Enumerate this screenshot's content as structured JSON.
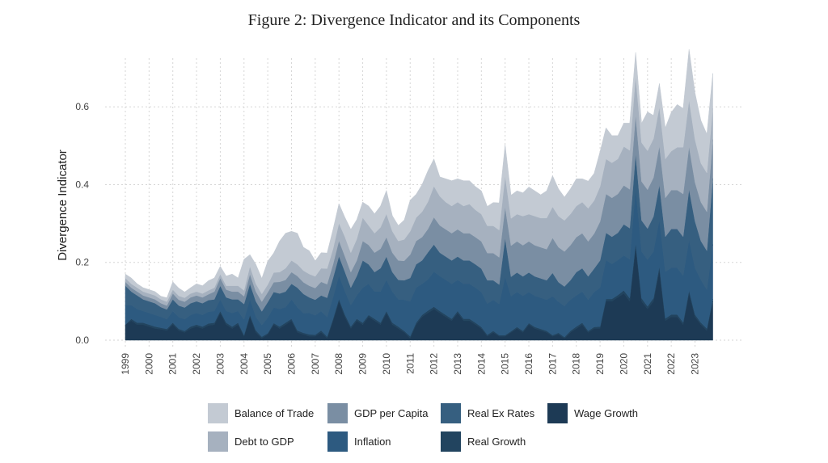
{
  "chart_data": {
    "type": "area",
    "title": "Figure 2: Divergence Indicator and its Components",
    "xlabel": "",
    "ylabel": "Divergence Indicator",
    "xlim": [
      1999,
      2023.8
    ],
    "ylim": [
      0,
      0.75
    ],
    "yticks": [
      0.0,
      0.2,
      0.4,
      0.6
    ],
    "ytick_labels": [
      "0.0",
      "0.2",
      "0.4",
      "0.6"
    ],
    "xticks": [
      "1999",
      "2000",
      "2001",
      "2002",
      "2003",
      "2004",
      "2005",
      "2006",
      "2007",
      "2008",
      "2009",
      "2010",
      "2011",
      "2012",
      "2013",
      "2014",
      "2015",
      "2016",
      "2017",
      "2018",
      "2019",
      "2020",
      "2021",
      "2022",
      "2023"
    ],
    "grid": true,
    "stacked": true,
    "legend_position": "bottom",
    "x": [
      1999.0,
      1999.25,
      1999.5,
      1999.75,
      2000.0,
      2000.25,
      2000.5,
      2000.75,
      2001.0,
      2001.25,
      2001.5,
      2001.75,
      2002.0,
      2002.25,
      2002.5,
      2002.75,
      2003.0,
      2003.25,
      2003.5,
      2003.75,
      2004.0,
      2004.25,
      2004.5,
      2004.75,
      2005.0,
      2005.25,
      2005.5,
      2005.75,
      2006.0,
      2006.25,
      2006.5,
      2006.75,
      2007.0,
      2007.25,
      2007.5,
      2007.75,
      2008.0,
      2008.25,
      2008.5,
      2008.75,
      2009.0,
      2009.25,
      2009.5,
      2009.75,
      2010.0,
      2010.25,
      2010.5,
      2010.75,
      2011.0,
      2011.25,
      2011.5,
      2011.75,
      2012.0,
      2012.25,
      2012.5,
      2012.75,
      2013.0,
      2013.25,
      2013.5,
      2013.75,
      2014.0,
      2014.25,
      2014.5,
      2014.75,
      2015.0,
      2015.25,
      2015.5,
      2015.75,
      2016.0,
      2016.25,
      2016.5,
      2016.75,
      2017.0,
      2017.25,
      2017.5,
      2017.75,
      2018.0,
      2018.25,
      2018.5,
      2018.75,
      2019.0,
      2019.25,
      2019.5,
      2019.75,
      2020.0,
      2020.25,
      2020.5,
      2020.75,
      2021.0,
      2021.25,
      2021.5,
      2021.75,
      2022.0,
      2022.25,
      2022.5,
      2022.75,
      2023.0,
      2023.25,
      2023.5,
      2023.75
    ],
    "series": [
      {
        "name": "Wage Growth",
        "color": "#1d3a55",
        "values": [
          0.04,
          0.05,
          0.04,
          0.04,
          0.035,
          0.03,
          0.028,
          0.025,
          0.04,
          0.025,
          0.02,
          0.03,
          0.035,
          0.03,
          0.038,
          0.04,
          0.07,
          0.04,
          0.03,
          0.04,
          0.01,
          0.06,
          0.02,
          0.005,
          0.015,
          0.04,
          0.03,
          0.04,
          0.05,
          0.02,
          0.015,
          0.01,
          0.01,
          0.02,
          0.005,
          0.05,
          0.1,
          0.06,
          0.03,
          0.05,
          0.04,
          0.06,
          0.05,
          0.04,
          0.07,
          0.04,
          0.03,
          0.02,
          0.005,
          0.04,
          0.06,
          0.07,
          0.08,
          0.07,
          0.06,
          0.05,
          0.07,
          0.05,
          0.05,
          0.04,
          0.03,
          0.01,
          0.02,
          0.01,
          0.01,
          0.02,
          0.03,
          0.02,
          0.04,
          0.03,
          0.025,
          0.02,
          0.01,
          0.015,
          0.005,
          0.02,
          0.03,
          0.04,
          0.02,
          0.03,
          0.03,
          0.1,
          0.1,
          0.11,
          0.12,
          0.1,
          0.24,
          0.1,
          0.08,
          0.1,
          0.18,
          0.05,
          0.06,
          0.06,
          0.04,
          0.12,
          0.06,
          0.04,
          0.025,
          0.1
        ]
      },
      {
        "name": "Real Growth",
        "color": "#22445f",
        "values": [
          0.0,
          0.005,
          0.005,
          0.005,
          0.005,
          0.005,
          0.004,
          0.004,
          0.005,
          0.004,
          0.004,
          0.005,
          0.005,
          0.005,
          0.005,
          0.005,
          0.005,
          0.005,
          0.005,
          0.005,
          0.003,
          0.005,
          0.005,
          0.004,
          0.003,
          0.004,
          0.005,
          0.005,
          0.005,
          0.005,
          0.004,
          0.005,
          0.004,
          0.005,
          0.004,
          0.005,
          0.006,
          0.006,
          0.005,
          0.005,
          0.005,
          0.005,
          0.005,
          0.005,
          0.005,
          0.005,
          0.005,
          0.004,
          0.005,
          0.005,
          0.005,
          0.006,
          0.006,
          0.005,
          0.005,
          0.005,
          0.005,
          0.005,
          0.005,
          0.005,
          0.004,
          0.004,
          0.004,
          0.003,
          0.003,
          0.003,
          0.004,
          0.004,
          0.004,
          0.004,
          0.004,
          0.004,
          0.003,
          0.004,
          0.003,
          0.004,
          0.005,
          0.005,
          0.004,
          0.004,
          0.005,
          0.006,
          0.006,
          0.006,
          0.008,
          0.008,
          0.01,
          0.008,
          0.007,
          0.008,
          0.01,
          0.006,
          0.006,
          0.006,
          0.006,
          0.008,
          0.006,
          0.005,
          0.005,
          0.006
        ]
      },
      {
        "name": "Inflation",
        "color": "#2d5a80",
        "values": [
          0.05,
          0.035,
          0.035,
          0.03,
          0.03,
          0.03,
          0.028,
          0.025,
          0.03,
          0.03,
          0.03,
          0.03,
          0.03,
          0.03,
          0.03,
          0.03,
          0.03,
          0.03,
          0.035,
          0.03,
          0.04,
          0.04,
          0.035,
          0.03,
          0.04,
          0.04,
          0.045,
          0.04,
          0.05,
          0.06,
          0.05,
          0.055,
          0.05,
          0.05,
          0.05,
          0.055,
          0.06,
          0.06,
          0.055,
          0.06,
          0.09,
          0.08,
          0.07,
          0.08,
          0.08,
          0.08,
          0.07,
          0.08,
          0.09,
          0.09,
          0.08,
          0.08,
          0.09,
          0.09,
          0.09,
          0.09,
          0.08,
          0.09,
          0.09,
          0.09,
          0.09,
          0.08,
          0.08,
          0.08,
          0.15,
          0.09,
          0.09,
          0.09,
          0.08,
          0.08,
          0.08,
          0.08,
          0.1,
          0.08,
          0.08,
          0.08,
          0.08,
          0.08,
          0.08,
          0.09,
          0.1,
          0.1,
          0.09,
          0.09,
          0.09,
          0.1,
          0.14,
          0.12,
          0.12,
          0.12,
          0.12,
          0.12,
          0.12,
          0.12,
          0.12,
          0.13,
          0.12,
          0.11,
          0.1,
          0.14
        ]
      },
      {
        "name": "Real Ex Rates",
        "color": "#365f80",
        "values": [
          0.05,
          0.035,
          0.035,
          0.03,
          0.03,
          0.03,
          0.025,
          0.025,
          0.03,
          0.03,
          0.03,
          0.03,
          0.03,
          0.03,
          0.03,
          0.03,
          0.035,
          0.035,
          0.035,
          0.03,
          0.04,
          0.04,
          0.04,
          0.035,
          0.04,
          0.04,
          0.04,
          0.04,
          0.04,
          0.05,
          0.05,
          0.04,
          0.04,
          0.04,
          0.05,
          0.05,
          0.05,
          0.05,
          0.045,
          0.05,
          0.07,
          0.05,
          0.05,
          0.06,
          0.06,
          0.05,
          0.05,
          0.05,
          0.06,
          0.06,
          0.06,
          0.07,
          0.07,
          0.06,
          0.06,
          0.06,
          0.06,
          0.06,
          0.06,
          0.06,
          0.06,
          0.06,
          0.05,
          0.05,
          0.1,
          0.05,
          0.05,
          0.05,
          0.05,
          0.05,
          0.05,
          0.05,
          0.06,
          0.05,
          0.05,
          0.05,
          0.06,
          0.06,
          0.06,
          0.06,
          0.07,
          0.07,
          0.07,
          0.07,
          0.08,
          0.08,
          0.09,
          0.08,
          0.08,
          0.09,
          0.09,
          0.09,
          0.1,
          0.1,
          0.1,
          0.13,
          0.12,
          0.1,
          0.1,
          0.17
        ]
      },
      {
        "name": "GDP per Capita",
        "color": "#7a8ea3",
        "values": [
          0.01,
          0.01,
          0.01,
          0.01,
          0.01,
          0.01,
          0.01,
          0.01,
          0.015,
          0.015,
          0.015,
          0.015,
          0.015,
          0.015,
          0.015,
          0.02,
          0.02,
          0.02,
          0.02,
          0.02,
          0.02,
          0.025,
          0.025,
          0.025,
          0.025,
          0.025,
          0.03,
          0.03,
          0.03,
          0.03,
          0.03,
          0.03,
          0.03,
          0.035,
          0.035,
          0.035,
          0.04,
          0.04,
          0.04,
          0.04,
          0.05,
          0.05,
          0.05,
          0.05,
          0.05,
          0.05,
          0.05,
          0.05,
          0.06,
          0.06,
          0.06,
          0.06,
          0.07,
          0.07,
          0.07,
          0.07,
          0.07,
          0.07,
          0.07,
          0.07,
          0.07,
          0.07,
          0.07,
          0.07,
          0.08,
          0.08,
          0.08,
          0.08,
          0.08,
          0.08,
          0.08,
          0.08,
          0.09,
          0.09,
          0.09,
          0.09,
          0.09,
          0.09,
          0.09,
          0.09,
          0.1,
          0.1,
          0.1,
          0.1,
          0.1,
          0.1,
          0.1,
          0.1,
          0.1,
          0.1,
          0.1,
          0.1,
          0.1,
          0.1,
          0.11,
          0.11,
          0.1,
          0.1,
          0.1,
          0.1
        ]
      },
      {
        "name": "Debt to GDP",
        "color": "#a6b1bf",
        "values": [
          0.01,
          0.01,
          0.01,
          0.01,
          0.01,
          0.01,
          0.01,
          0.01,
          0.01,
          0.01,
          0.01,
          0.01,
          0.01,
          0.01,
          0.01,
          0.01,
          0.01,
          0.01,
          0.015,
          0.015,
          0.015,
          0.02,
          0.02,
          0.02,
          0.02,
          0.025,
          0.025,
          0.03,
          0.03,
          0.03,
          0.03,
          0.03,
          0.03,
          0.035,
          0.04,
          0.04,
          0.045,
          0.05,
          0.05,
          0.055,
          0.06,
          0.05,
          0.05,
          0.055,
          0.06,
          0.055,
          0.05,
          0.055,
          0.06,
          0.06,
          0.065,
          0.07,
          0.08,
          0.075,
          0.07,
          0.07,
          0.07,
          0.07,
          0.075,
          0.07,
          0.07,
          0.07,
          0.07,
          0.07,
          0.08,
          0.07,
          0.07,
          0.075,
          0.07,
          0.075,
          0.075,
          0.08,
          0.08,
          0.08,
          0.08,
          0.08,
          0.08,
          0.08,
          0.085,
          0.085,
          0.09,
          0.09,
          0.09,
          0.09,
          0.1,
          0.1,
          0.1,
          0.1,
          0.1,
          0.1,
          0.1,
          0.1,
          0.1,
          0.11,
          0.12,
          0.12,
          0.11,
          0.1,
          0.1,
          0.08
        ]
      },
      {
        "name": "Balance of Trade",
        "color": "#c3cad3",
        "values": [
          0.01,
          0.015,
          0.01,
          0.01,
          0.01,
          0.01,
          0.008,
          0.01,
          0.02,
          0.02,
          0.015,
          0.015,
          0.02,
          0.02,
          0.025,
          0.025,
          0.02,
          0.025,
          0.03,
          0.02,
          0.08,
          0.03,
          0.05,
          0.04,
          0.06,
          0.05,
          0.08,
          0.09,
          0.075,
          0.08,
          0.06,
          0.06,
          0.04,
          0.04,
          0.04,
          0.05,
          0.05,
          0.05,
          0.06,
          0.05,
          0.04,
          0.05,
          0.05,
          0.055,
          0.06,
          0.04,
          0.04,
          0.05,
          0.08,
          0.06,
          0.07,
          0.08,
          0.07,
          0.05,
          0.06,
          0.065,
          0.06,
          0.065,
          0.06,
          0.06,
          0.06,
          0.05,
          0.06,
          0.07,
          0.08,
          0.06,
          0.06,
          0.06,
          0.07,
          0.065,
          0.06,
          0.07,
          0.08,
          0.07,
          0.06,
          0.065,
          0.07,
          0.06,
          0.07,
          0.07,
          0.09,
          0.08,
          0.07,
          0.06,
          0.06,
          0.07,
          0.06,
          0.05,
          0.1,
          0.06,
          0.06,
          0.08,
          0.1,
          0.11,
          0.1,
          0.13,
          0.12,
          0.11,
          0.1,
          0.09
        ]
      }
    ],
    "legend_rows": [
      [
        "Balance of Trade",
        "GDP per Capita",
        "Real Ex Rates",
        "Wage Growth"
      ],
      [
        "Debt to GDP",
        "Inflation",
        "Real Growth"
      ]
    ]
  }
}
